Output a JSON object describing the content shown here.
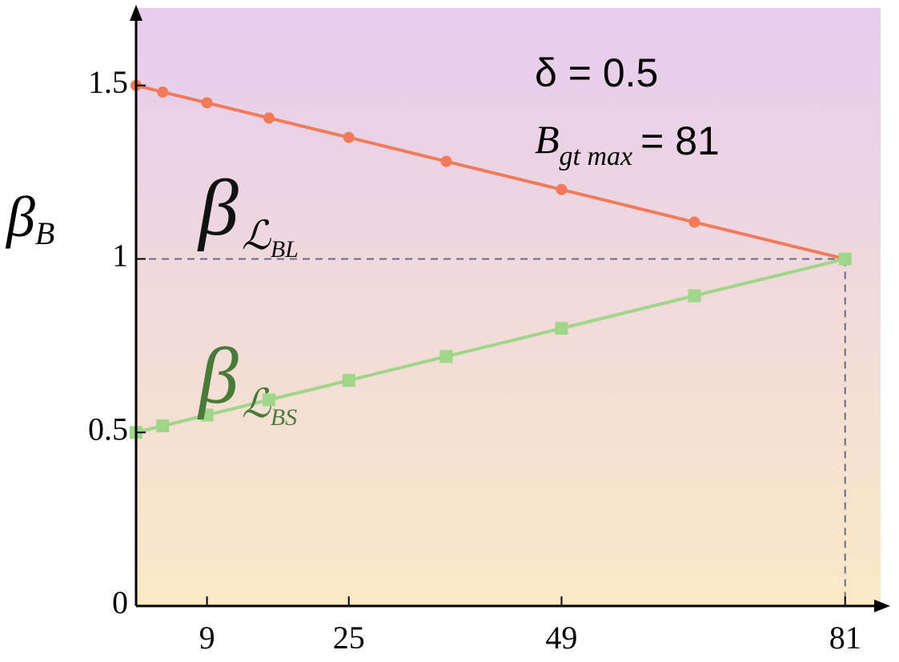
{
  "chart_data": {
    "type": "line",
    "y_label": [
      "β",
      "B"
    ],
    "annotations": [
      [
        "δ = 0.5"
      ],
      [
        "B",
        "gt max",
        "= 81"
      ]
    ],
    "x": [
      1,
      4,
      9,
      16,
      25,
      36,
      49,
      64,
      81
    ],
    "series": [
      {
        "label": [
          "β",
          "ℒ",
          "BL"
        ],
        "color": "#f07b5a",
        "marker": "circle",
        "label_color": "#111111",
        "values": [
          1.5,
          1.481,
          1.45,
          1.406,
          1.35,
          1.281,
          1.2,
          1.106,
          1.0
        ]
      },
      {
        "label": [
          "β",
          "ℒ",
          "BS"
        ],
        "color": "#9fd68a",
        "marker": "square",
        "label_color": "#4a7a3a",
        "values": [
          0.5,
          0.519,
          0.55,
          0.594,
          0.65,
          0.719,
          0.8,
          0.894,
          1.0
        ]
      }
    ],
    "xlim": [
      1,
      85
    ],
    "xticks": [
      9,
      25,
      49,
      81
    ],
    "ylim": [
      0,
      1.7
    ],
    "yticks": [
      0,
      0.5,
      1,
      1.5
    ],
    "reference_lines": {
      "x": 81,
      "y": 1
    },
    "background": [
      "#e6ccef",
      "#fbe9c6"
    ]
  }
}
